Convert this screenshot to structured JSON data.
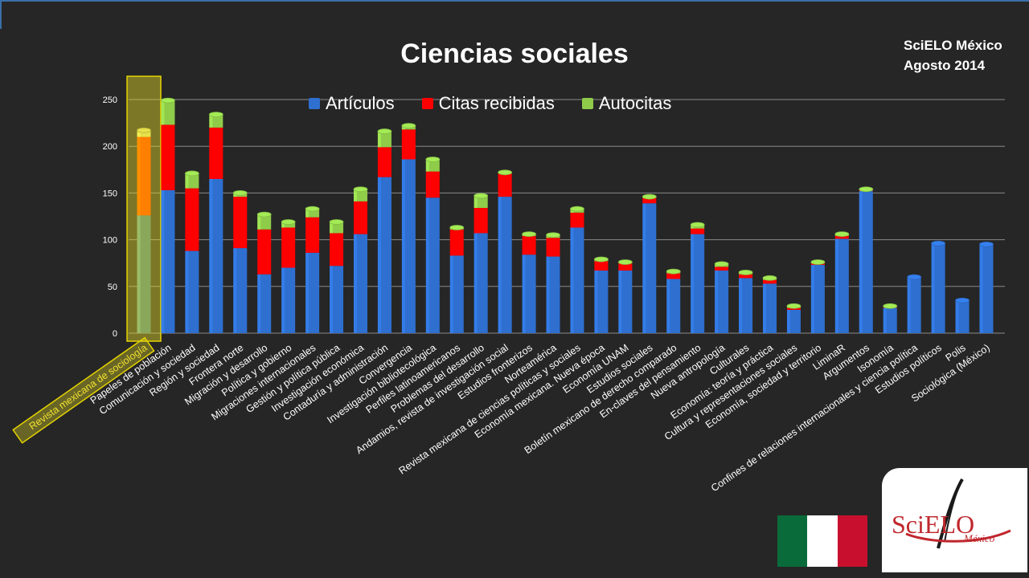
{
  "slide": {
    "title": "Ciencias sociales",
    "corner_line1": "SciELO México",
    "corner_line2": "Agosto 2014",
    "logo_text": "SciELO",
    "logo_subtext": "México",
    "flag_colors": [
      "#0a6b3a",
      "#ffffff",
      "#c8102e"
    ]
  },
  "chart_data": {
    "type": "bar",
    "stacked": true,
    "title": "Ciencias sociales",
    "ylim": [
      0,
      250
    ],
    "yticks": [
      0,
      50,
      100,
      150,
      200,
      250
    ],
    "grid": true,
    "legend_position": "top",
    "highlighted_category": "Revista mexicana de sociología",
    "categories": [
      "Revista mexicana de sociología",
      "Papeles de población",
      "Comunicación y sociedad",
      "Región y sociedad",
      "Frontera norte",
      "Migración y desarrollo",
      "Política y gobierno",
      "Migraciones internacionales",
      "Gestión y política pública",
      "Investigación económica",
      "Contaduría y administración",
      "Convergencia",
      "Investigación bibliotecológica",
      "Perfiles latinoamericanos",
      "Problemas del desarrollo",
      "Andamios, revista de investigación social",
      "Estudios fronterizos",
      "Norteamérica",
      "Revista mexicana de ciencias políticas y sociales",
      "Economía mexicana. Nueva época",
      "Economía UNAM",
      "Estudios sociales",
      "Boletín mexicano de derecho comparado",
      "En-claves del pensamiento",
      "Nueva antropología",
      "Culturales",
      "Economía: teoría y práctica",
      "Cultura y representaciones sociales",
      "Economía, sociedad y territorio",
      "LiminaR",
      "Argumentos",
      "Isonomía",
      "Confines de relaciones internacionales y ciencia política",
      "Estudios políticos",
      "Polis",
      "Sociológica (México)"
    ],
    "series": [
      {
        "name": "Artículos",
        "color": "#2e6fd0",
        "values": [
          126,
          153,
          88,
          165,
          91,
          63,
          70,
          86,
          72,
          106,
          167,
          186,
          145,
          83,
          107,
          146,
          84,
          82,
          113,
          67,
          67,
          139,
          58,
          106,
          67,
          59,
          53,
          25,
          73,
          101,
          152,
          27,
          60,
          96,
          35,
          95
        ]
      },
      {
        "name": "Citas recibidas",
        "color": "#ff0000",
        "values": [
          84,
          70,
          67,
          55,
          55,
          48,
          43,
          38,
          35,
          35,
          32,
          32,
          28,
          28,
          27,
          25,
          20,
          20,
          16,
          10,
          8,
          6,
          6,
          6,
          4,
          4,
          4,
          2,
          2,
          3,
          1,
          1,
          0,
          0,
          0,
          0
        ]
      },
      {
        "name": "Autocitas",
        "color": "#8fcc4a",
        "values": [
          7,
          26,
          16,
          14,
          4,
          16,
          6,
          9,
          12,
          13,
          17,
          4,
          13,
          2,
          13,
          1,
          2,
          3,
          4,
          2,
          1,
          1,
          2,
          4,
          3,
          2,
          2,
          2,
          1,
          2,
          1,
          1,
          0,
          0,
          0,
          0
        ]
      }
    ]
  }
}
